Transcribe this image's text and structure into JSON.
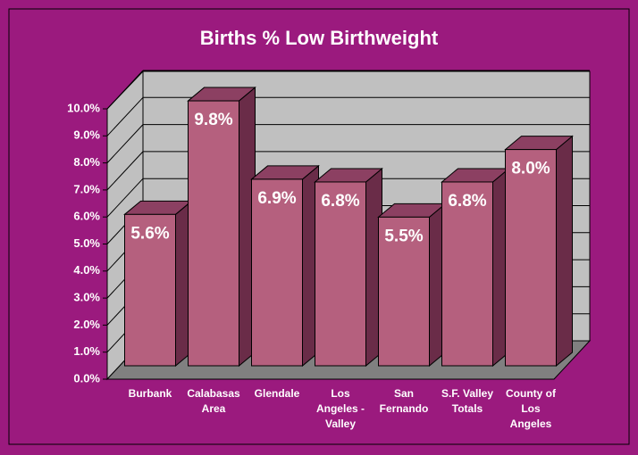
{
  "chart_data": {
    "type": "bar3d",
    "title": "Births % Low Birthweight",
    "categories": [
      "Burbank",
      "Calabasas Area",
      "Glendale",
      "Los Angeles - Valley",
      "San Fernando",
      "S.F. Valley Totals",
      "County of Los Angeles"
    ],
    "values": [
      5.6,
      9.8,
      6.9,
      6.8,
      5.5,
      6.8,
      8.0
    ],
    "value_labels": [
      "5.6%",
      "9.8%",
      "6.9%",
      "6.8%",
      "5.5%",
      "6.8%",
      "8.0%"
    ],
    "color": "#b5607e",
    "ylim": [
      0,
      10
    ],
    "yticks": [
      {
        "value": 0,
        "label": "0.0%"
      },
      {
        "value": 1,
        "label": "1.0%"
      },
      {
        "value": 2,
        "label": "2.0%"
      },
      {
        "value": 3,
        "label": "3.0%"
      },
      {
        "value": 4,
        "label": "4.0%"
      },
      {
        "value": 5,
        "label": "5.0%"
      },
      {
        "value": 6,
        "label": "6.0%"
      },
      {
        "value": 7,
        "label": "7.0%"
      },
      {
        "value": 8,
        "label": "8.0%"
      },
      {
        "value": 9,
        "label": "9.0%"
      },
      {
        "value": 10,
        "label": "10.0%"
      }
    ],
    "grid": true
  }
}
